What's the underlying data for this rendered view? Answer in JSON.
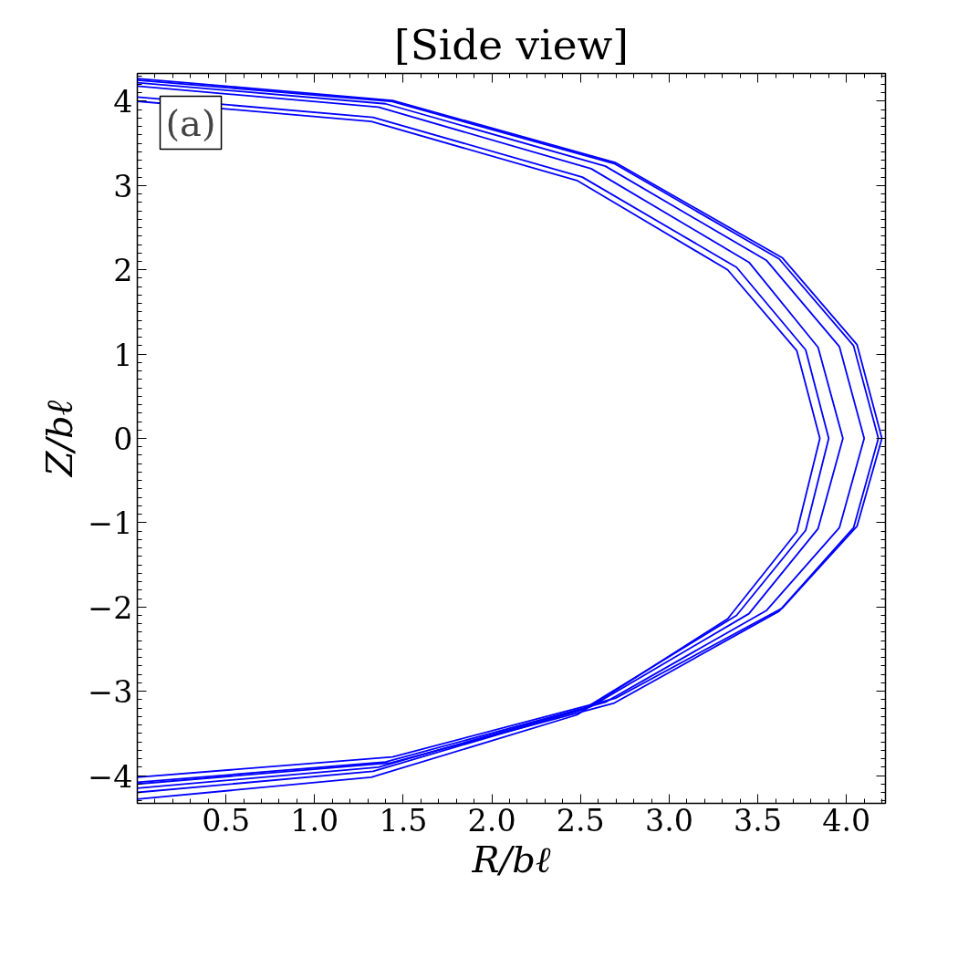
{
  "chart_data": {
    "type": "line",
    "title": "[Side view]",
    "xlabel": "R/bℓ",
    "ylabel": "Z/bℓ",
    "annotations": [
      "(a)"
    ],
    "xlim": [
      0,
      4.22
    ],
    "ylim": [
      -4.33,
      4.33
    ],
    "xticks": [
      0.5,
      {
        "value": 1,
        "label": "1.0"
      },
      1.5,
      {
        "value": 2,
        "label": "2.0"
      },
      2.5,
      {
        "value": 3,
        "label": "3.0"
      },
      3.5,
      {
        "value": 4,
        "label": "4.0"
      }
    ],
    "yticks": [
      -4,
      -3,
      -2,
      -1,
      0,
      1,
      2,
      3,
      4
    ],
    "grid": false,
    "line_style": "solid",
    "marker": "none",
    "series": [
      {
        "color": "#0000ff",
        "x": [
          0,
          1.44,
          2.7,
          3.64,
          4.06,
          4.2,
          4.06,
          3.64,
          2.7,
          1.44,
          0
        ],
        "values": [
          4.27,
          4.01,
          3.27,
          2.14,
          1.11,
          0,
          -1.04,
          -2.01,
          -3.08,
          -3.78,
          -4.02
        ]
      },
      {
        "color": "#0000ff",
        "x": [
          0,
          1.4,
          2.64,
          3.55,
          3.96,
          4.1,
          3.96,
          3.55,
          2.64,
          1.4,
          0
        ],
        "values": [
          4.22,
          3.97,
          3.23,
          2.11,
          1.09,
          0,
          -1.06,
          -2.04,
          -3.13,
          -3.84,
          -4.08
        ]
      },
      {
        "color": "#0000ff",
        "x": [
          0,
          1.36,
          2.56,
          3.45,
          3.84,
          3.98,
          3.84,
          3.45,
          2.56,
          1.36,
          0
        ],
        "values": [
          4.18,
          3.93,
          3.2,
          2.09,
          1.08,
          0,
          -1.07,
          -2.08,
          -3.18,
          -3.9,
          -4.15
        ]
      },
      {
        "color": "#0000ff",
        "x": [
          0,
          1.33,
          2.51,
          3.38,
          3.77,
          3.9,
          3.77,
          3.38,
          2.51,
          1.33,
          0
        ],
        "values": [
          4.05,
          3.81,
          3.1,
          2.03,
          1.05,
          0,
          -1.09,
          -2.1,
          -3.22,
          -3.95,
          -4.2
        ]
      },
      {
        "color": "#0000ff",
        "x": [
          0,
          1.32,
          2.48,
          3.33,
          3.72,
          3.85,
          3.72,
          3.33,
          2.48,
          1.32,
          0
        ],
        "values": [
          4.0,
          3.76,
          3.06,
          2.0,
          1.04,
          0,
          -1.11,
          -2.14,
          -3.28,
          -4.02,
          -4.28
        ]
      },
      {
        "color": "#0000ff",
        "x": [
          0,
          1.43,
          2.69,
          3.62,
          4.04,
          4.18,
          4.04,
          3.62,
          2.69,
          1.43,
          0
        ],
        "values": [
          4.25,
          4.0,
          3.26,
          2.13,
          1.1,
          0,
          -1.06,
          -2.05,
          -3.14,
          -3.85,
          -4.1
        ]
      }
    ]
  }
}
